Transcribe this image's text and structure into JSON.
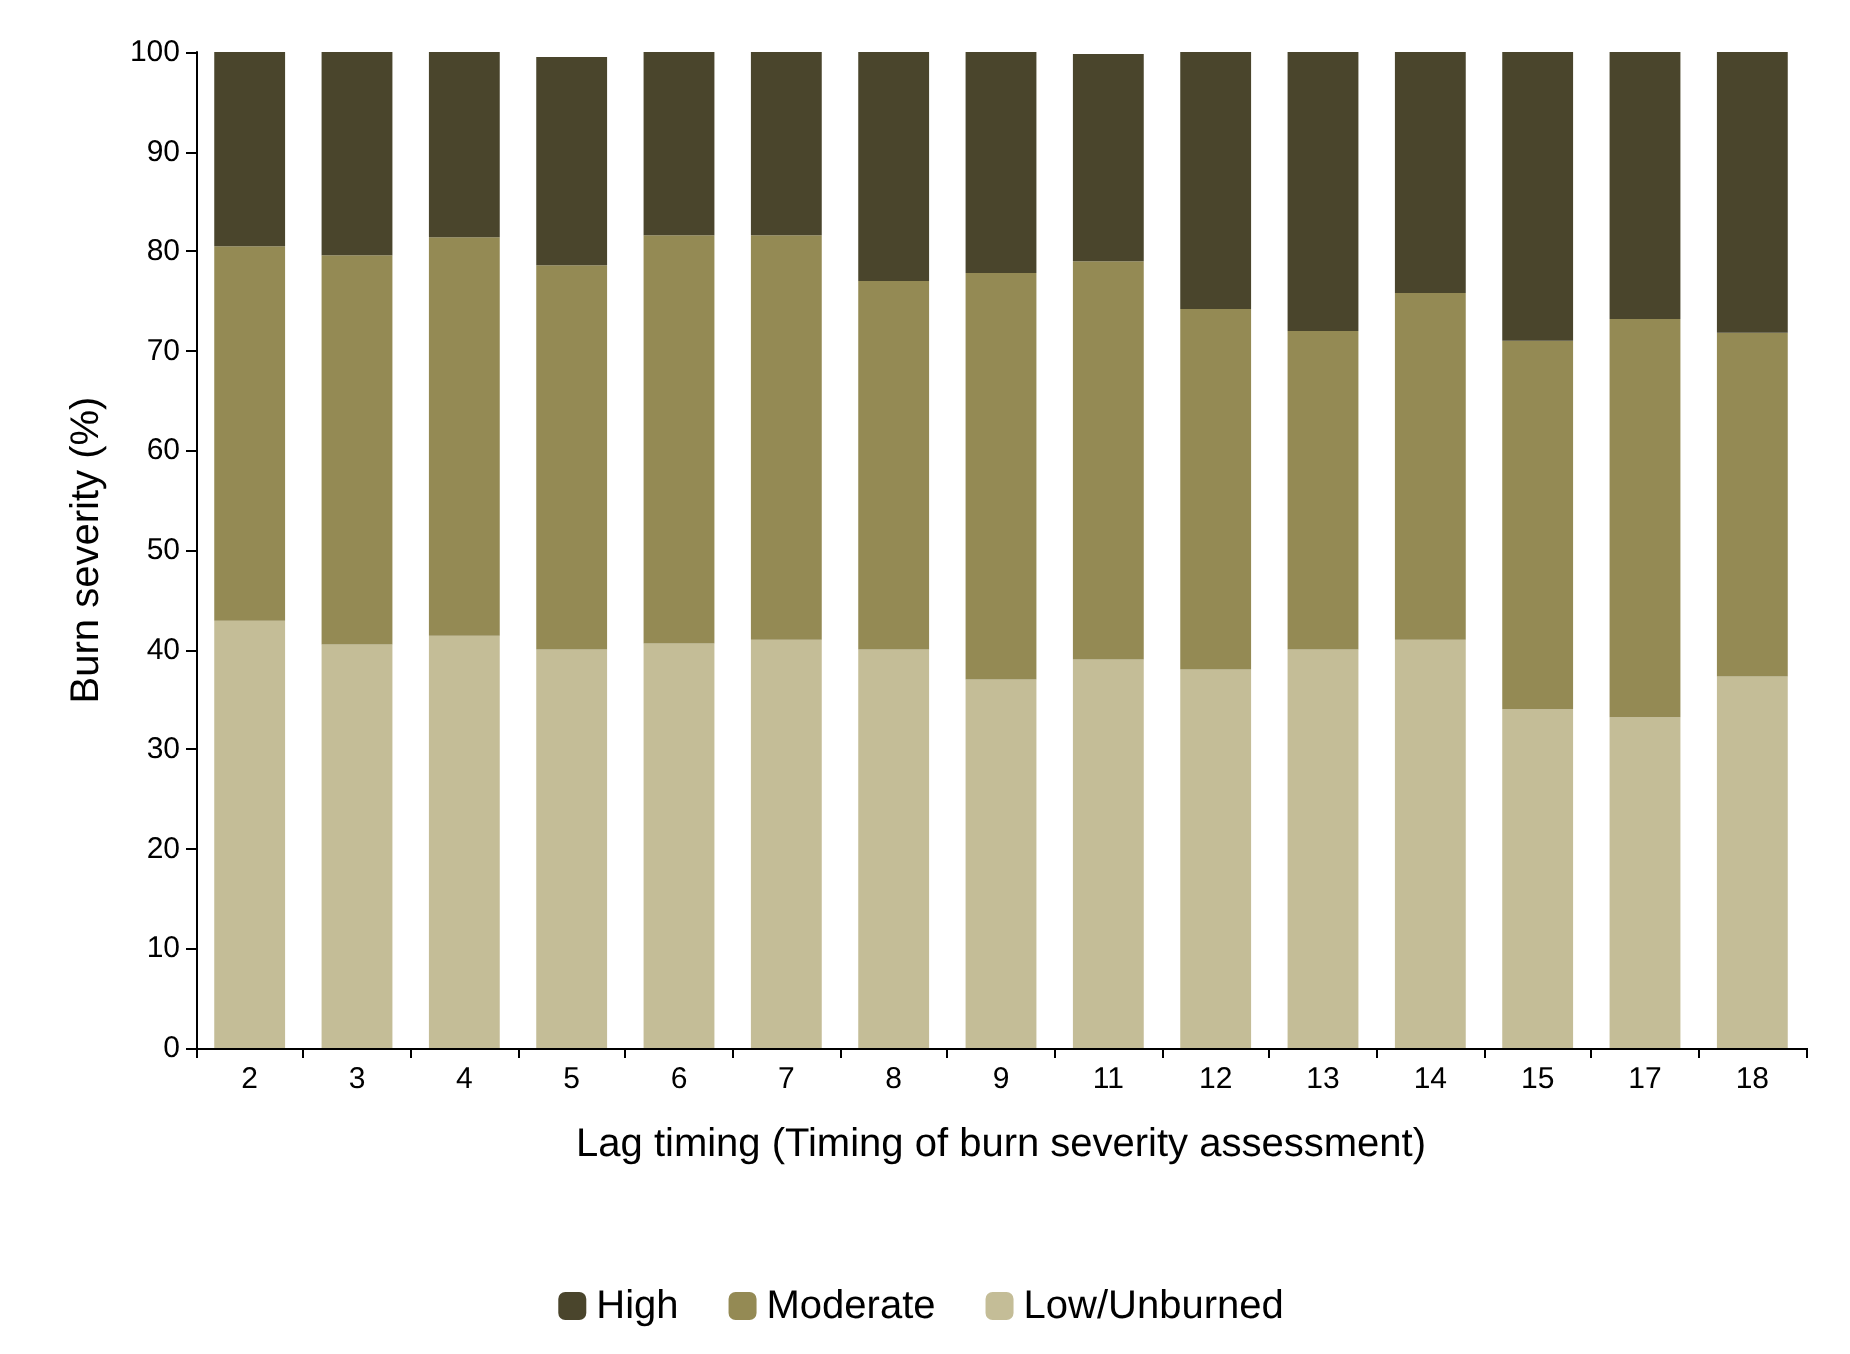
{
  "chart_data": {
    "type": "bar",
    "stacked": true,
    "xlabel": "Lag timing (Timing of burn severity assessment)",
    "ylabel": "Burn severity (%)",
    "categories": [
      "2",
      "3",
      "4",
      "5",
      "6",
      "7",
      "8",
      "9",
      "11",
      "12",
      "13",
      "14",
      "15",
      "17",
      "18"
    ],
    "series": [
      {
        "name": "Low/Unburned",
        "color": "#c4bd97",
        "values": [
          42.9,
          40.5,
          41.4,
          40.0,
          40.6,
          41.0,
          40.0,
          37.0,
          39.0,
          38.0,
          40.0,
          41.0,
          34.0,
          33.2,
          37.3
        ]
      },
      {
        "name": "Moderate",
        "color": "#948a54",
        "values": [
          37.6,
          39.1,
          40.0,
          38.6,
          41.0,
          40.6,
          37.0,
          40.8,
          40.0,
          36.2,
          32.0,
          34.8,
          37.0,
          40.0,
          34.5
        ]
      },
      {
        "name": "High",
        "color": "#4a452c",
        "values": [
          19.5,
          20.4,
          18.6,
          20.9,
          18.4,
          18.4,
          23.0,
          22.2,
          20.8,
          25.8,
          28.0,
          24.2,
          29.0,
          26.8,
          28.2
        ]
      }
    ],
    "ylim": [
      0,
      100
    ],
    "yticks": [
      0,
      10,
      20,
      30,
      40,
      50,
      60,
      70,
      80,
      90,
      100
    ],
    "grid": false,
    "legend": "bottom"
  }
}
